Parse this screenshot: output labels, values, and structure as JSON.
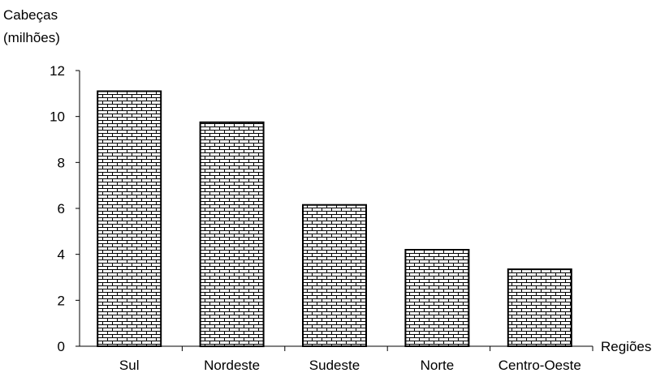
{
  "chart_data": {
    "type": "bar",
    "categories": [
      "Sul",
      "Nordeste",
      "Sudeste",
      "Norte",
      "Centro-Oeste"
    ],
    "values": [
      11.1,
      9.75,
      6.15,
      4.2,
      3.35
    ],
    "ylabel": [
      "Cabeças",
      "(milhões)"
    ],
    "xlabel": "Regiões",
    "ylim": [
      0,
      12
    ],
    "yticks": [
      0,
      2,
      4,
      6,
      8,
      10,
      12
    ],
    "grid": false,
    "bar_fill": "brick-pattern",
    "colors": {
      "bar_pattern_line": "#000000",
      "bar_background": "#ffffff",
      "axis": "#000000"
    }
  }
}
